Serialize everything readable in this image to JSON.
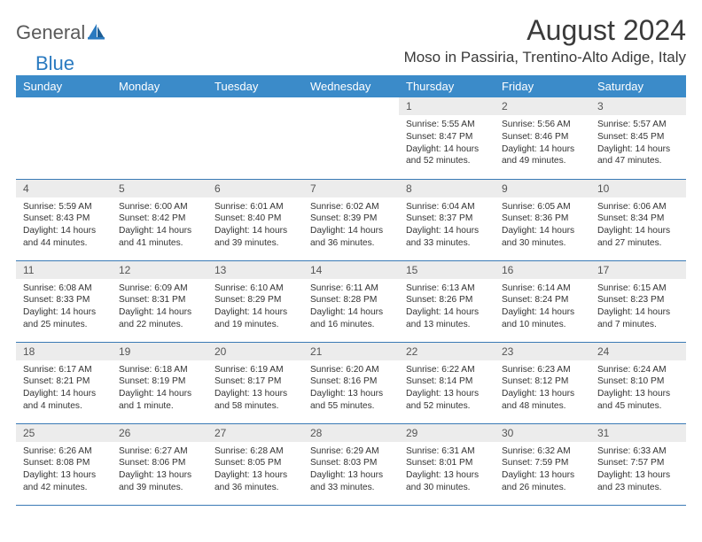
{
  "logo": {
    "general": "General",
    "blue": "Blue"
  },
  "title": "August 2024",
  "location": "Moso in Passiria, Trentino-Alto Adige, Italy",
  "brand_color": "#3b8bc9",
  "text_color": "#333333",
  "daynum_bg": "#ececec",
  "weekdays": [
    "Sunday",
    "Monday",
    "Tuesday",
    "Wednesday",
    "Thursday",
    "Friday",
    "Saturday"
  ],
  "weeks": [
    [
      null,
      null,
      null,
      null,
      {
        "n": "1",
        "sr": "5:55 AM",
        "ss": "8:47 PM",
        "dl": "14 hours and 52 minutes."
      },
      {
        "n": "2",
        "sr": "5:56 AM",
        "ss": "8:46 PM",
        "dl": "14 hours and 49 minutes."
      },
      {
        "n": "3",
        "sr": "5:57 AM",
        "ss": "8:45 PM",
        "dl": "14 hours and 47 minutes."
      }
    ],
    [
      {
        "n": "4",
        "sr": "5:59 AM",
        "ss": "8:43 PM",
        "dl": "14 hours and 44 minutes."
      },
      {
        "n": "5",
        "sr": "6:00 AM",
        "ss": "8:42 PM",
        "dl": "14 hours and 41 minutes."
      },
      {
        "n": "6",
        "sr": "6:01 AM",
        "ss": "8:40 PM",
        "dl": "14 hours and 39 minutes."
      },
      {
        "n": "7",
        "sr": "6:02 AM",
        "ss": "8:39 PM",
        "dl": "14 hours and 36 minutes."
      },
      {
        "n": "8",
        "sr": "6:04 AM",
        "ss": "8:37 PM",
        "dl": "14 hours and 33 minutes."
      },
      {
        "n": "9",
        "sr": "6:05 AM",
        "ss": "8:36 PM",
        "dl": "14 hours and 30 minutes."
      },
      {
        "n": "10",
        "sr": "6:06 AM",
        "ss": "8:34 PM",
        "dl": "14 hours and 27 minutes."
      }
    ],
    [
      {
        "n": "11",
        "sr": "6:08 AM",
        "ss": "8:33 PM",
        "dl": "14 hours and 25 minutes."
      },
      {
        "n": "12",
        "sr": "6:09 AM",
        "ss": "8:31 PM",
        "dl": "14 hours and 22 minutes."
      },
      {
        "n": "13",
        "sr": "6:10 AM",
        "ss": "8:29 PM",
        "dl": "14 hours and 19 minutes."
      },
      {
        "n": "14",
        "sr": "6:11 AM",
        "ss": "8:28 PM",
        "dl": "14 hours and 16 minutes."
      },
      {
        "n": "15",
        "sr": "6:13 AM",
        "ss": "8:26 PM",
        "dl": "14 hours and 13 minutes."
      },
      {
        "n": "16",
        "sr": "6:14 AM",
        "ss": "8:24 PM",
        "dl": "14 hours and 10 minutes."
      },
      {
        "n": "17",
        "sr": "6:15 AM",
        "ss": "8:23 PM",
        "dl": "14 hours and 7 minutes."
      }
    ],
    [
      {
        "n": "18",
        "sr": "6:17 AM",
        "ss": "8:21 PM",
        "dl": "14 hours and 4 minutes."
      },
      {
        "n": "19",
        "sr": "6:18 AM",
        "ss": "8:19 PM",
        "dl": "14 hours and 1 minute."
      },
      {
        "n": "20",
        "sr": "6:19 AM",
        "ss": "8:17 PM",
        "dl": "13 hours and 58 minutes."
      },
      {
        "n": "21",
        "sr": "6:20 AM",
        "ss": "8:16 PM",
        "dl": "13 hours and 55 minutes."
      },
      {
        "n": "22",
        "sr": "6:22 AM",
        "ss": "8:14 PM",
        "dl": "13 hours and 52 minutes."
      },
      {
        "n": "23",
        "sr": "6:23 AM",
        "ss": "8:12 PM",
        "dl": "13 hours and 48 minutes."
      },
      {
        "n": "24",
        "sr": "6:24 AM",
        "ss": "8:10 PM",
        "dl": "13 hours and 45 minutes."
      }
    ],
    [
      {
        "n": "25",
        "sr": "6:26 AM",
        "ss": "8:08 PM",
        "dl": "13 hours and 42 minutes."
      },
      {
        "n": "26",
        "sr": "6:27 AM",
        "ss": "8:06 PM",
        "dl": "13 hours and 39 minutes."
      },
      {
        "n": "27",
        "sr": "6:28 AM",
        "ss": "8:05 PM",
        "dl": "13 hours and 36 minutes."
      },
      {
        "n": "28",
        "sr": "6:29 AM",
        "ss": "8:03 PM",
        "dl": "13 hours and 33 minutes."
      },
      {
        "n": "29",
        "sr": "6:31 AM",
        "ss": "8:01 PM",
        "dl": "13 hours and 30 minutes."
      },
      {
        "n": "30",
        "sr": "6:32 AM",
        "ss": "7:59 PM",
        "dl": "13 hours and 26 minutes."
      },
      {
        "n": "31",
        "sr": "6:33 AM",
        "ss": "7:57 PM",
        "dl": "13 hours and 23 minutes."
      }
    ]
  ],
  "labels": {
    "sunrise": "Sunrise:",
    "sunset": "Sunset:",
    "daylight": "Daylight:"
  }
}
